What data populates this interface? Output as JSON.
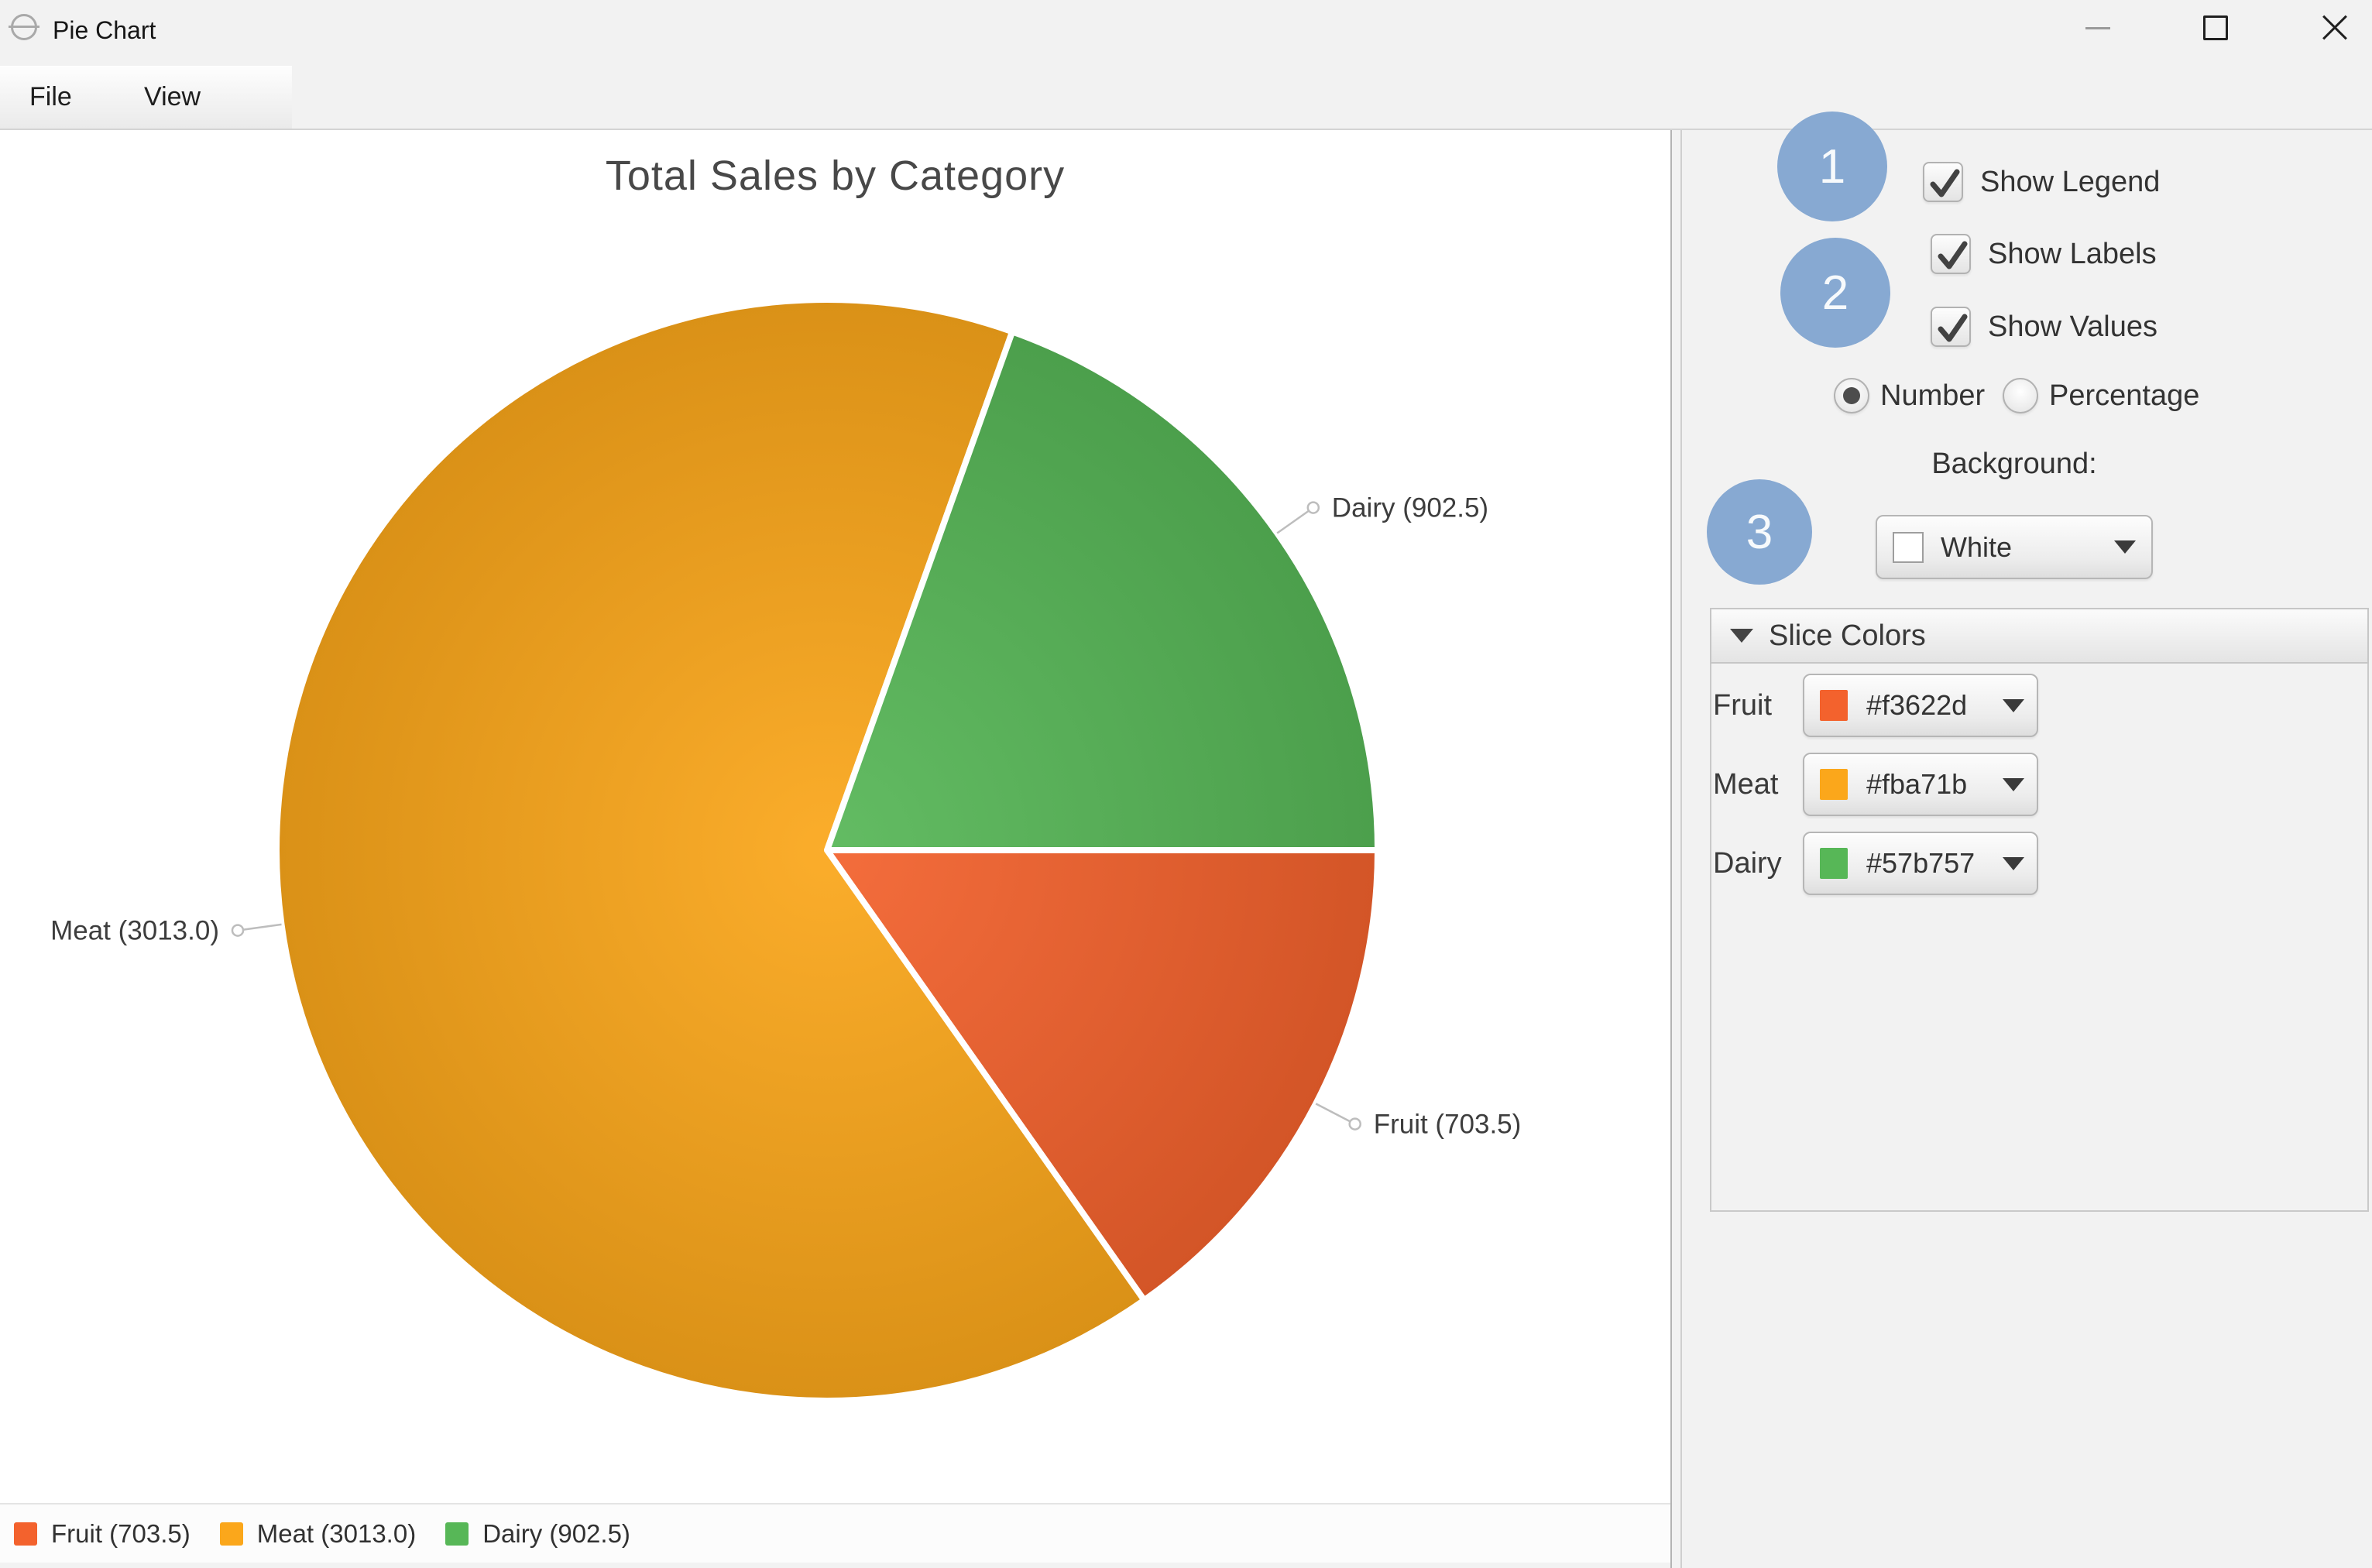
{
  "window": {
    "title": "Pie Chart",
    "controls": [
      "minimize",
      "maximize",
      "close"
    ]
  },
  "menu": {
    "items": [
      {
        "label": "File"
      },
      {
        "label": "View"
      }
    ]
  },
  "chart_data": {
    "type": "pie",
    "title": "Total Sales by Category",
    "categories": [
      "Fruit",
      "Meat",
      "Dairy"
    ],
    "values": [
      703.5,
      3013.0,
      902.5
    ],
    "colors": [
      "#f3622d",
      "#fba71b",
      "#57b757"
    ],
    "slice_labels": [
      "Fruit (703.5)",
      "Meat (3013.0)",
      "Dairy (902.5)"
    ],
    "label_format": "name (value)",
    "start_angle_deg": 0,
    "direction": "clockwise",
    "legend_position": "bottom",
    "labels_shown": true,
    "values_shown": true
  },
  "legend": {
    "items": [
      {
        "label": "Fruit (703.5)",
        "color": "#f3622d"
      },
      {
        "label": "Meat (3013.0)",
        "color": "#fba71b"
      },
      {
        "label": "Dairy (902.5)",
        "color": "#57b757"
      }
    ]
  },
  "panel": {
    "checkboxes": [
      {
        "label": "Show Legend",
        "checked": true
      },
      {
        "label": "Show Labels",
        "checked": true
      },
      {
        "label": "Show Values",
        "checked": true
      }
    ],
    "radios": [
      {
        "label": "Number",
        "selected": true
      },
      {
        "label": "Percentage",
        "selected": false
      }
    ],
    "background_label": "Background:",
    "background_select": {
      "value": "White",
      "swatch": "#ffffff"
    },
    "slice_colors": {
      "header": "Slice Colors",
      "rows": [
        {
          "label": "Fruit",
          "value": "#f3622d"
        },
        {
          "label": "Meat",
          "value": "#fba71b"
        },
        {
          "label": "Dairy",
          "value": "#57b757"
        }
      ]
    }
  },
  "annotations": {
    "badges": [
      "1",
      "2",
      "3"
    ],
    "color": "#87a9d2"
  }
}
